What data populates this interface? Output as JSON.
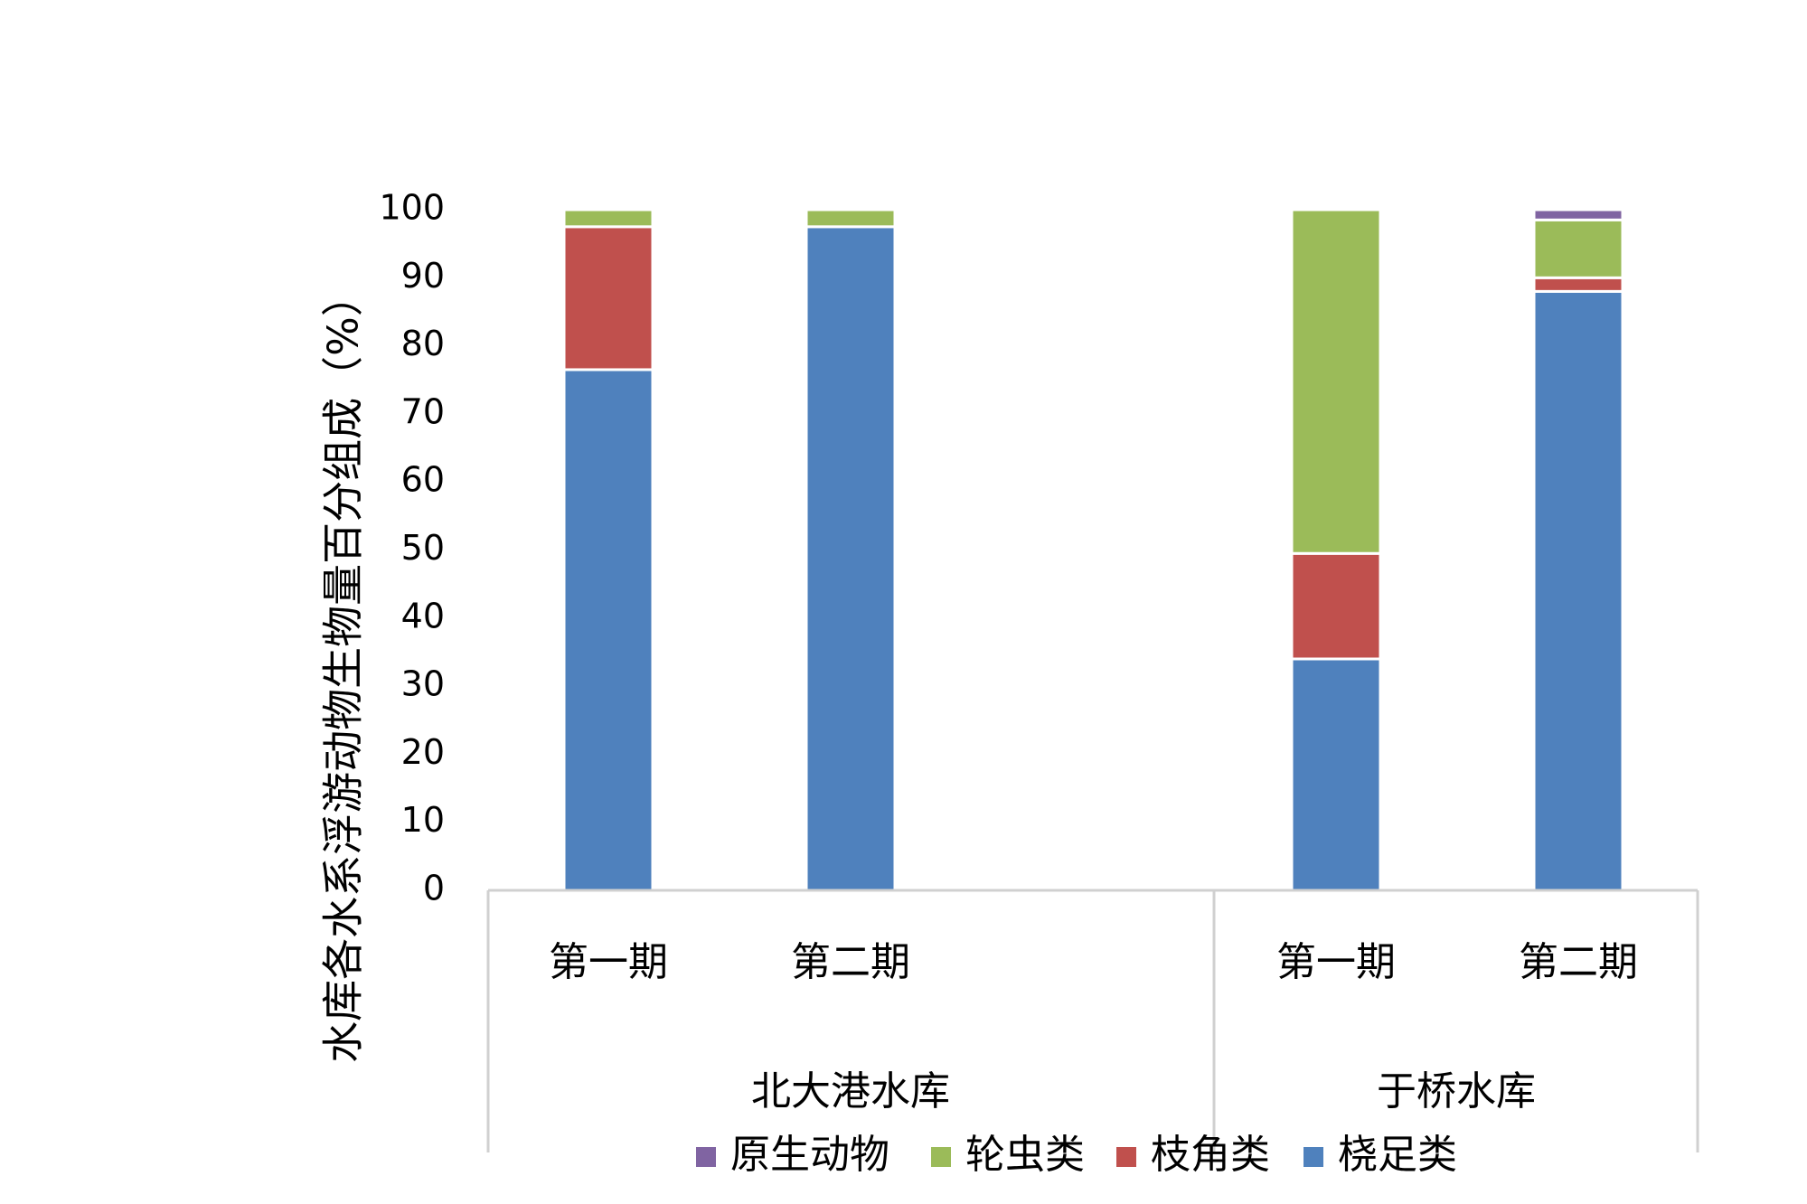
{
  "chart_data": {
    "type": "bar",
    "stacked": true,
    "title": "",
    "ylabel": "水库各水系浮游动物生物量百分组成（%）",
    "xlabel": "",
    "ylim": [
      0,
      100
    ],
    "yticks": [
      0,
      10,
      20,
      30,
      40,
      50,
      60,
      70,
      80,
      90,
      100
    ],
    "grid": false,
    "legend_position": "bottom",
    "groups": [
      {
        "name": "北大港水库",
        "categories": [
          "第一期",
          "第二期"
        ]
      },
      {
        "name": "于桥水库",
        "categories": [
          "第一期",
          "第二期"
        ]
      }
    ],
    "categories": [
      "第一期",
      "第二期",
      "第一期",
      "第二期"
    ],
    "series": [
      {
        "name": "桡足类",
        "color": "#4F81BD",
        "values": [
          76.5,
          97.5,
          34,
          88
        ]
      },
      {
        "name": "枝角类",
        "color": "#C0504D",
        "values": [
          21,
          0,
          15.5,
          2
        ]
      },
      {
        "name": "轮虫类",
        "color": "#9BBB59",
        "values": [
          2.5,
          2.5,
          50.5,
          8.5
        ]
      },
      {
        "name": "原生动物",
        "color": "#8064A2",
        "values": [
          0,
          0,
          0,
          1.5
        ]
      }
    ],
    "legend_order": [
      "原生动物",
      "轮虫类",
      "枝角类",
      "桡足类"
    ]
  }
}
